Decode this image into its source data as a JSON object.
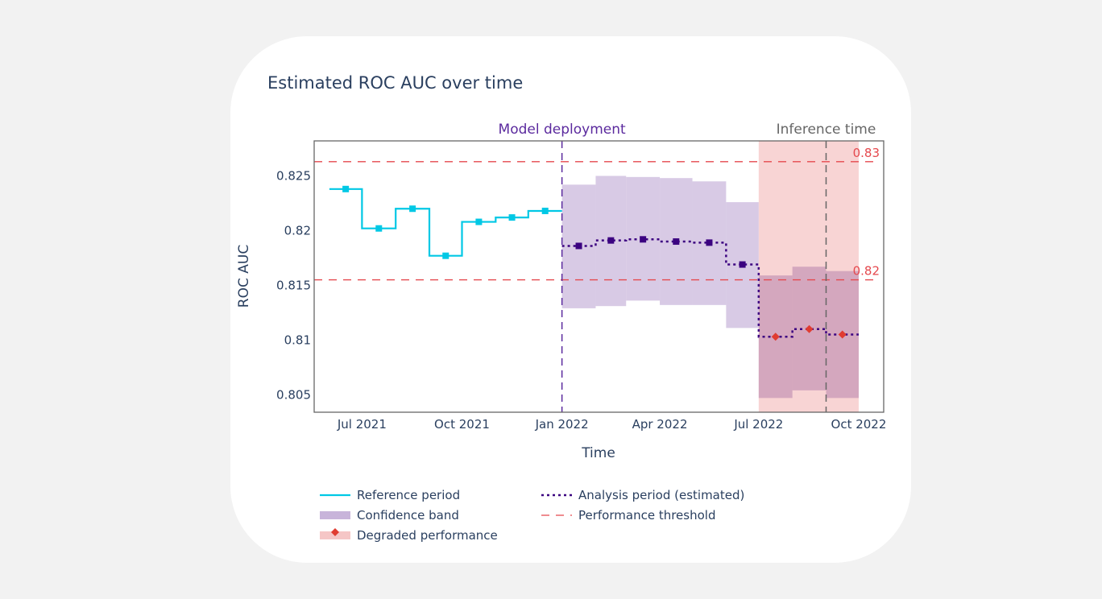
{
  "chart_data": {
    "type": "line",
    "title": "Estimated ROC AUC over time",
    "xlabel": "Time",
    "ylabel": "ROC AUC",
    "xlim": [
      "2021-05-18",
      "2022-10-24"
    ],
    "ylim": [
      0.8034,
      0.8282
    ],
    "x_ticks": [
      {
        "date": "2021-07-01",
        "label": "Jul 2021"
      },
      {
        "date": "2021-10-01",
        "label": "Oct 2021"
      },
      {
        "date": "2022-01-01",
        "label": "Jan 2022"
      },
      {
        "date": "2022-04-01",
        "label": "Apr 2022"
      },
      {
        "date": "2022-07-01",
        "label": "Jul 2022"
      },
      {
        "date": "2022-10-01",
        "label": "Oct 2022"
      }
    ],
    "y_ticks": [
      {
        "value": 0.805,
        "label": "0.805"
      },
      {
        "value": 0.81,
        "label": "0.81"
      },
      {
        "value": 0.815,
        "label": "0.815"
      },
      {
        "value": 0.82,
        "label": "0.82"
      },
      {
        "value": 0.825,
        "label": "0.825"
      }
    ],
    "grid": false,
    "reference": {
      "name": "Reference period",
      "color": "#00c8e5",
      "months": [
        "2021-06",
        "2021-07",
        "2021-08",
        "2021-09",
        "2021-10",
        "2021-11",
        "2021-12"
      ],
      "values": [
        0.8238,
        0.8202,
        0.822,
        0.8177,
        0.8208,
        0.8212,
        0.8218
      ]
    },
    "analysis": {
      "name": "Analysis period (estimated)",
      "color": "#3b0280",
      "months": [
        "2022-01",
        "2022-02",
        "2022-03",
        "2022-04",
        "2022-05",
        "2022-06",
        "2022-07",
        "2022-08",
        "2022-09"
      ],
      "values": [
        0.8186,
        0.8191,
        0.8192,
        0.819,
        0.8189,
        0.8169,
        0.8103,
        0.811,
        0.8105
      ],
      "upper": [
        0.8242,
        0.825,
        0.8249,
        0.8248,
        0.8245,
        0.8226,
        0.8159,
        0.8167,
        0.8163
      ],
      "lower": [
        0.8129,
        0.8131,
        0.8136,
        0.8132,
        0.8132,
        0.8111,
        0.8047,
        0.8054,
        0.8047
      ],
      "degraded": [
        false,
        false,
        false,
        false,
        false,
        false,
        true,
        true,
        true
      ]
    },
    "thresholds": [
      {
        "value": 0.8263,
        "label": "0.83"
      },
      {
        "value": 0.8155,
        "label": "0.82"
      }
    ],
    "threshold_color": "#e5484d",
    "band_color": "#c8b4da",
    "degraded_color": "#f5c6c6",
    "degraded_marker_color": "#e03c31",
    "degraded_region": [
      "2022-07-01",
      "2022-10-01"
    ],
    "annotations": [
      {
        "date": "2022-01-01",
        "label": "Model deployment",
        "color": "#5b2a9e"
      },
      {
        "date": "2022-09-01",
        "label": "Inference time",
        "color": "#666666"
      }
    ],
    "legend": {
      "placement": "bottom",
      "items": [
        {
          "key": "reference",
          "label": "Reference period"
        },
        {
          "key": "analysis",
          "label": "Analysis period (estimated)"
        },
        {
          "key": "band",
          "label": "Confidence band"
        },
        {
          "key": "threshold",
          "label": "Performance threshold"
        },
        {
          "key": "degraded",
          "label": "Degraded performance"
        }
      ]
    }
  }
}
